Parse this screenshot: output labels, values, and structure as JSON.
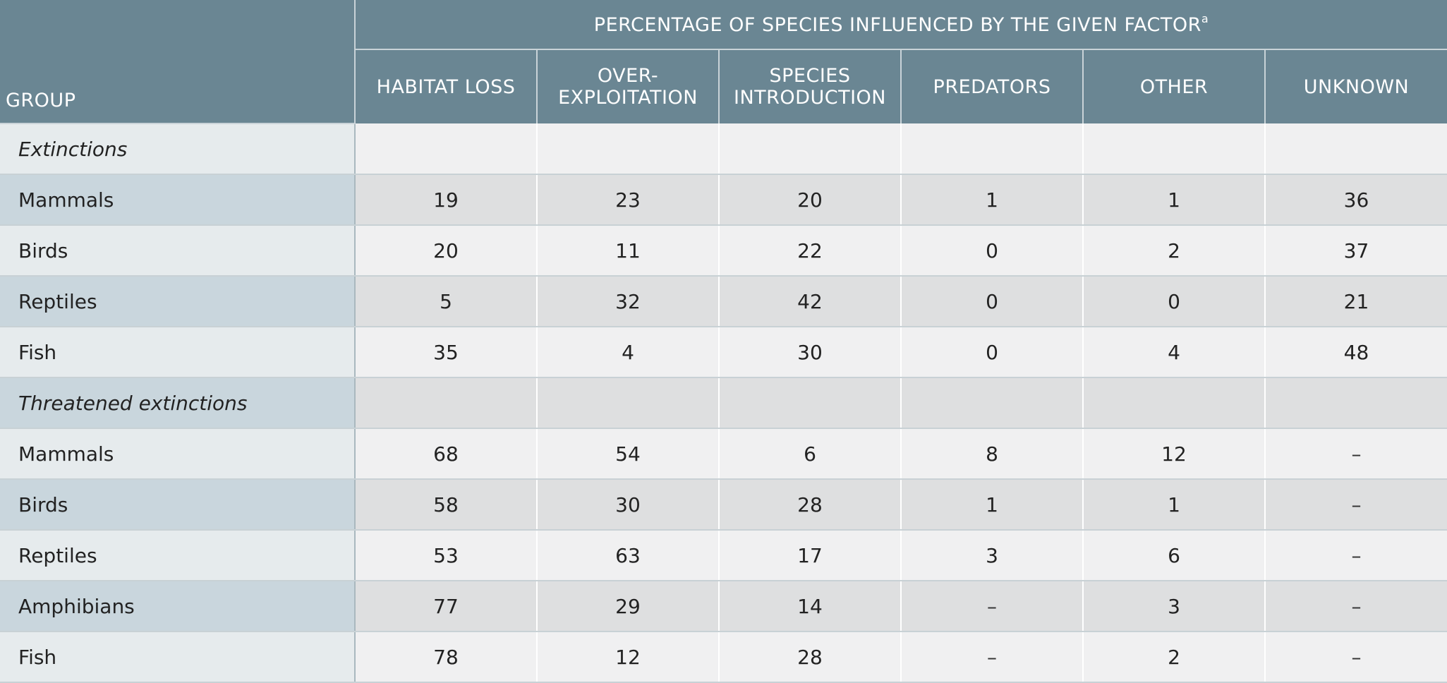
{
  "header": {
    "group_label": "GROUP",
    "supertitle": "PERCENTAGE OF SPECIES INFLUENCED BY THE GIVEN FACTOR",
    "supertitle_footnote": "a",
    "columns": [
      [
        "HABITAT LOSS"
      ],
      [
        "OVER-",
        "EXPLOITATION"
      ],
      [
        "SPECIES",
        "INTRODUCTION"
      ],
      [
        "PREDATORS"
      ],
      [
        "OTHER"
      ],
      [
        "UNKNOWN"
      ]
    ]
  },
  "rows": [
    {
      "type": "section",
      "label": "Extinctions",
      "values": [
        "",
        "",
        "",
        "",
        "",
        ""
      ]
    },
    {
      "type": "data",
      "label": "Mammals",
      "values": [
        "19",
        "23",
        "20",
        "1",
        "1",
        "36"
      ]
    },
    {
      "type": "data",
      "label": "Birds",
      "values": [
        "20",
        "11",
        "22",
        "0",
        "2",
        "37"
      ]
    },
    {
      "type": "data",
      "label": "Reptiles",
      "values": [
        "5",
        "32",
        "42",
        "0",
        "0",
        "21"
      ]
    },
    {
      "type": "data",
      "label": "Fish",
      "values": [
        "35",
        "4",
        "30",
        "0",
        "4",
        "48"
      ]
    },
    {
      "type": "section",
      "label": "Threatened extinctions",
      "values": [
        "",
        "",
        "",
        "",
        "",
        ""
      ]
    },
    {
      "type": "data",
      "label": "Mammals",
      "values": [
        "68",
        "54",
        "6",
        "8",
        "12",
        "–"
      ]
    },
    {
      "type": "data",
      "label": "Birds",
      "values": [
        "58",
        "30",
        "28",
        "1",
        "1",
        "–"
      ]
    },
    {
      "type": "data",
      "label": "Reptiles",
      "values": [
        "53",
        "63",
        "17",
        "3",
        "6",
        "–"
      ]
    },
    {
      "type": "data",
      "label": "Amphibians",
      "values": [
        "77",
        "29",
        "14",
        "–",
        "3",
        "–"
      ]
    },
    {
      "type": "data",
      "label": "Fish",
      "values": [
        "78",
        "12",
        "28",
        "–",
        "2",
        "–"
      ]
    }
  ]
}
